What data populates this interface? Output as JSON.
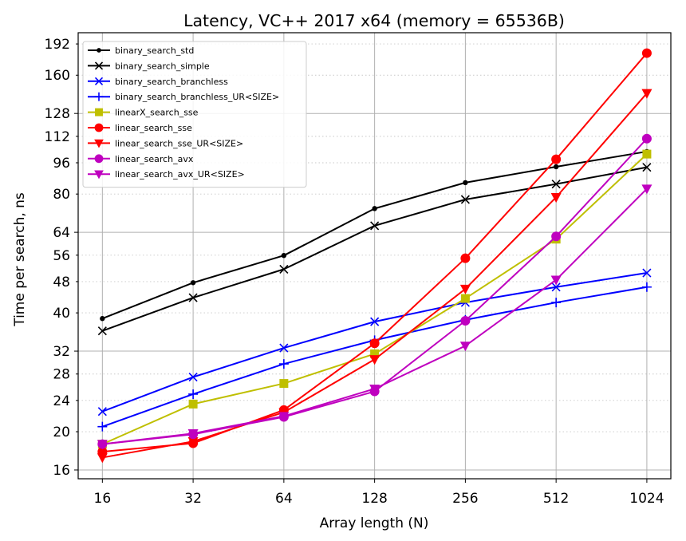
{
  "chart_data": {
    "type": "line",
    "title": "Latency, VC++ 2017 x64 (memory = 65536B)",
    "xlabel": "Array length (N)",
    "ylabel": "Time per search, ns",
    "x_scale": "log2",
    "y_scale": "log2",
    "x": [
      16,
      32,
      64,
      128,
      256,
      512,
      1024
    ],
    "x_tick_labels": [
      "16",
      "32",
      "64",
      "128",
      "256",
      "512",
      "1024"
    ],
    "y_major_ticks": [
      16,
      32,
      64,
      128
    ],
    "y_tick_values": [
      16,
      20,
      24,
      28,
      32,
      40,
      48,
      56,
      64,
      80,
      96,
      112,
      128,
      160,
      192
    ],
    "y_tick_labels": [
      "16",
      "20",
      "24",
      "28",
      "32",
      "40",
      "48",
      "56",
      "64",
      "80",
      "96",
      "112",
      "128",
      "160",
      "192"
    ],
    "xlim": [
      13.3,
      1230
    ],
    "ylim": [
      15.2,
      205
    ],
    "grid": true,
    "legend_position": "top-left",
    "series": [
      {
        "name": "binary_search_std",
        "color": "#000000",
        "marker": "dot",
        "values": [
          38.7,
          47.7,
          55.9,
          73.5,
          85.5,
          93.8,
          102.5
        ]
      },
      {
        "name": "binary_search_simple",
        "color": "#000000",
        "marker": "x",
        "values": [
          36.0,
          43.7,
          51.6,
          66.5,
          77.5,
          84.8,
          93.5
        ]
      },
      {
        "name": "binary_search_branchless",
        "color": "#0000ff",
        "marker": "x",
        "values": [
          22.5,
          27.5,
          32.6,
          38.0,
          42.5,
          46.5,
          50.5
        ]
      },
      {
        "name": "binary_search_branchless_UR<SIZE>",
        "color": "#0000ff",
        "marker": "plus",
        "values": [
          20.6,
          24.9,
          29.7,
          34.1,
          38.4,
          42.5,
          46.5
        ]
      },
      {
        "name": "linearX_search_sse",
        "color": "#bfbf00",
        "marker": "square",
        "values": [
          18.6,
          23.5,
          26.5,
          31.5,
          43.5,
          61.5,
          101.0
        ]
      },
      {
        "name": "linear_search_sse",
        "color": "#ff0000",
        "marker": "circle",
        "values": [
          17.8,
          18.7,
          22.7,
          33.5,
          55.0,
          98.0,
          182.0
        ]
      },
      {
        "name": "linear_search_sse_UR<SIZE>",
        "color": "#ff0000",
        "marker": "triangle-down",
        "values": [
          17.2,
          18.9,
          22.4,
          30.5,
          46.0,
          78.5,
          144.0
        ]
      },
      {
        "name": "linear_search_avx",
        "color": "#bf00bf",
        "marker": "circle",
        "values": [
          18.6,
          19.7,
          21.8,
          25.3,
          38.2,
          62.5,
          110.5
        ]
      },
      {
        "name": "linear_search_avx_UR<SIZE>",
        "color": "#bf00bf",
        "marker": "triangle-down",
        "values": [
          18.6,
          19.8,
          21.9,
          25.7,
          33.0,
          48.5,
          82.5
        ]
      }
    ]
  }
}
